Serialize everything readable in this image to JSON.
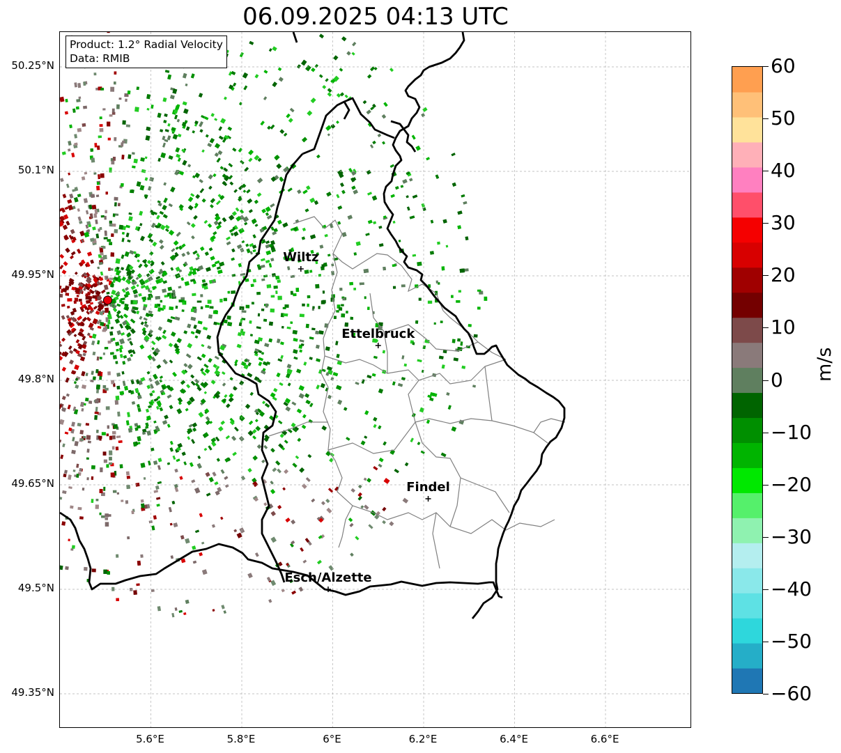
{
  "title": "06.09.2025 04:13 UTC",
  "info": {
    "product": "Product: 1.2° Radial Velocity",
    "data": "Data: RMIB"
  },
  "lat_labels": [
    "50.25°N",
    "50.1°N",
    "49.95°N",
    "49.8°N",
    "49.65°N",
    "49.5°N",
    "49.35°N"
  ],
  "lon_labels": [
    "5.6°E",
    "5.8°E",
    "6°E",
    "6.2°E",
    "6.4°E",
    "6.6°E"
  ],
  "map_extent": {
    "lon_min": 5.4,
    "lon_max": 6.79,
    "lat_min": 49.3,
    "lat_max": 50.3
  },
  "cities": [
    {
      "name": "Wiltz",
      "lon": 5.93,
      "lat": 49.96
    },
    {
      "name": "Ettelbruck",
      "lon": 6.1,
      "lat": 49.85
    },
    {
      "name": "Findel",
      "lon": 6.21,
      "lat": 49.63
    },
    {
      "name": "Esch/Alzette",
      "lon": 5.99,
      "lat": 49.5
    }
  ],
  "radar_site": {
    "lon": 5.505,
    "lat": 49.915,
    "color": "#e8000b"
  },
  "colorbar": {
    "unit": "m/s",
    "tick_labels": [
      "60",
      "50",
      "40",
      "30",
      "20",
      "10",
      "0",
      "−10",
      "−20",
      "−30",
      "−40",
      "−50",
      "−60"
    ],
    "min": -60,
    "max": 60,
    "colors": [
      "#1f77b4",
      "#25aec8",
      "#2ed7dc",
      "#5ee1e4",
      "#8ae8ea",
      "#b4eeef",
      "#8ff2b0",
      "#55f06b",
      "#00e800",
      "#00b400",
      "#008f00",
      "#006400",
      "#5f7f5f",
      "#8a7a7a",
      "#7d4a4a",
      "#740000",
      "#a00000",
      "#d80000",
      "#f50000",
      "#ff4f6a",
      "#ff80c0",
      "#ffb0b8",
      "#ffe29a",
      "#ffc078",
      "#ff9f50"
    ]
  }
}
